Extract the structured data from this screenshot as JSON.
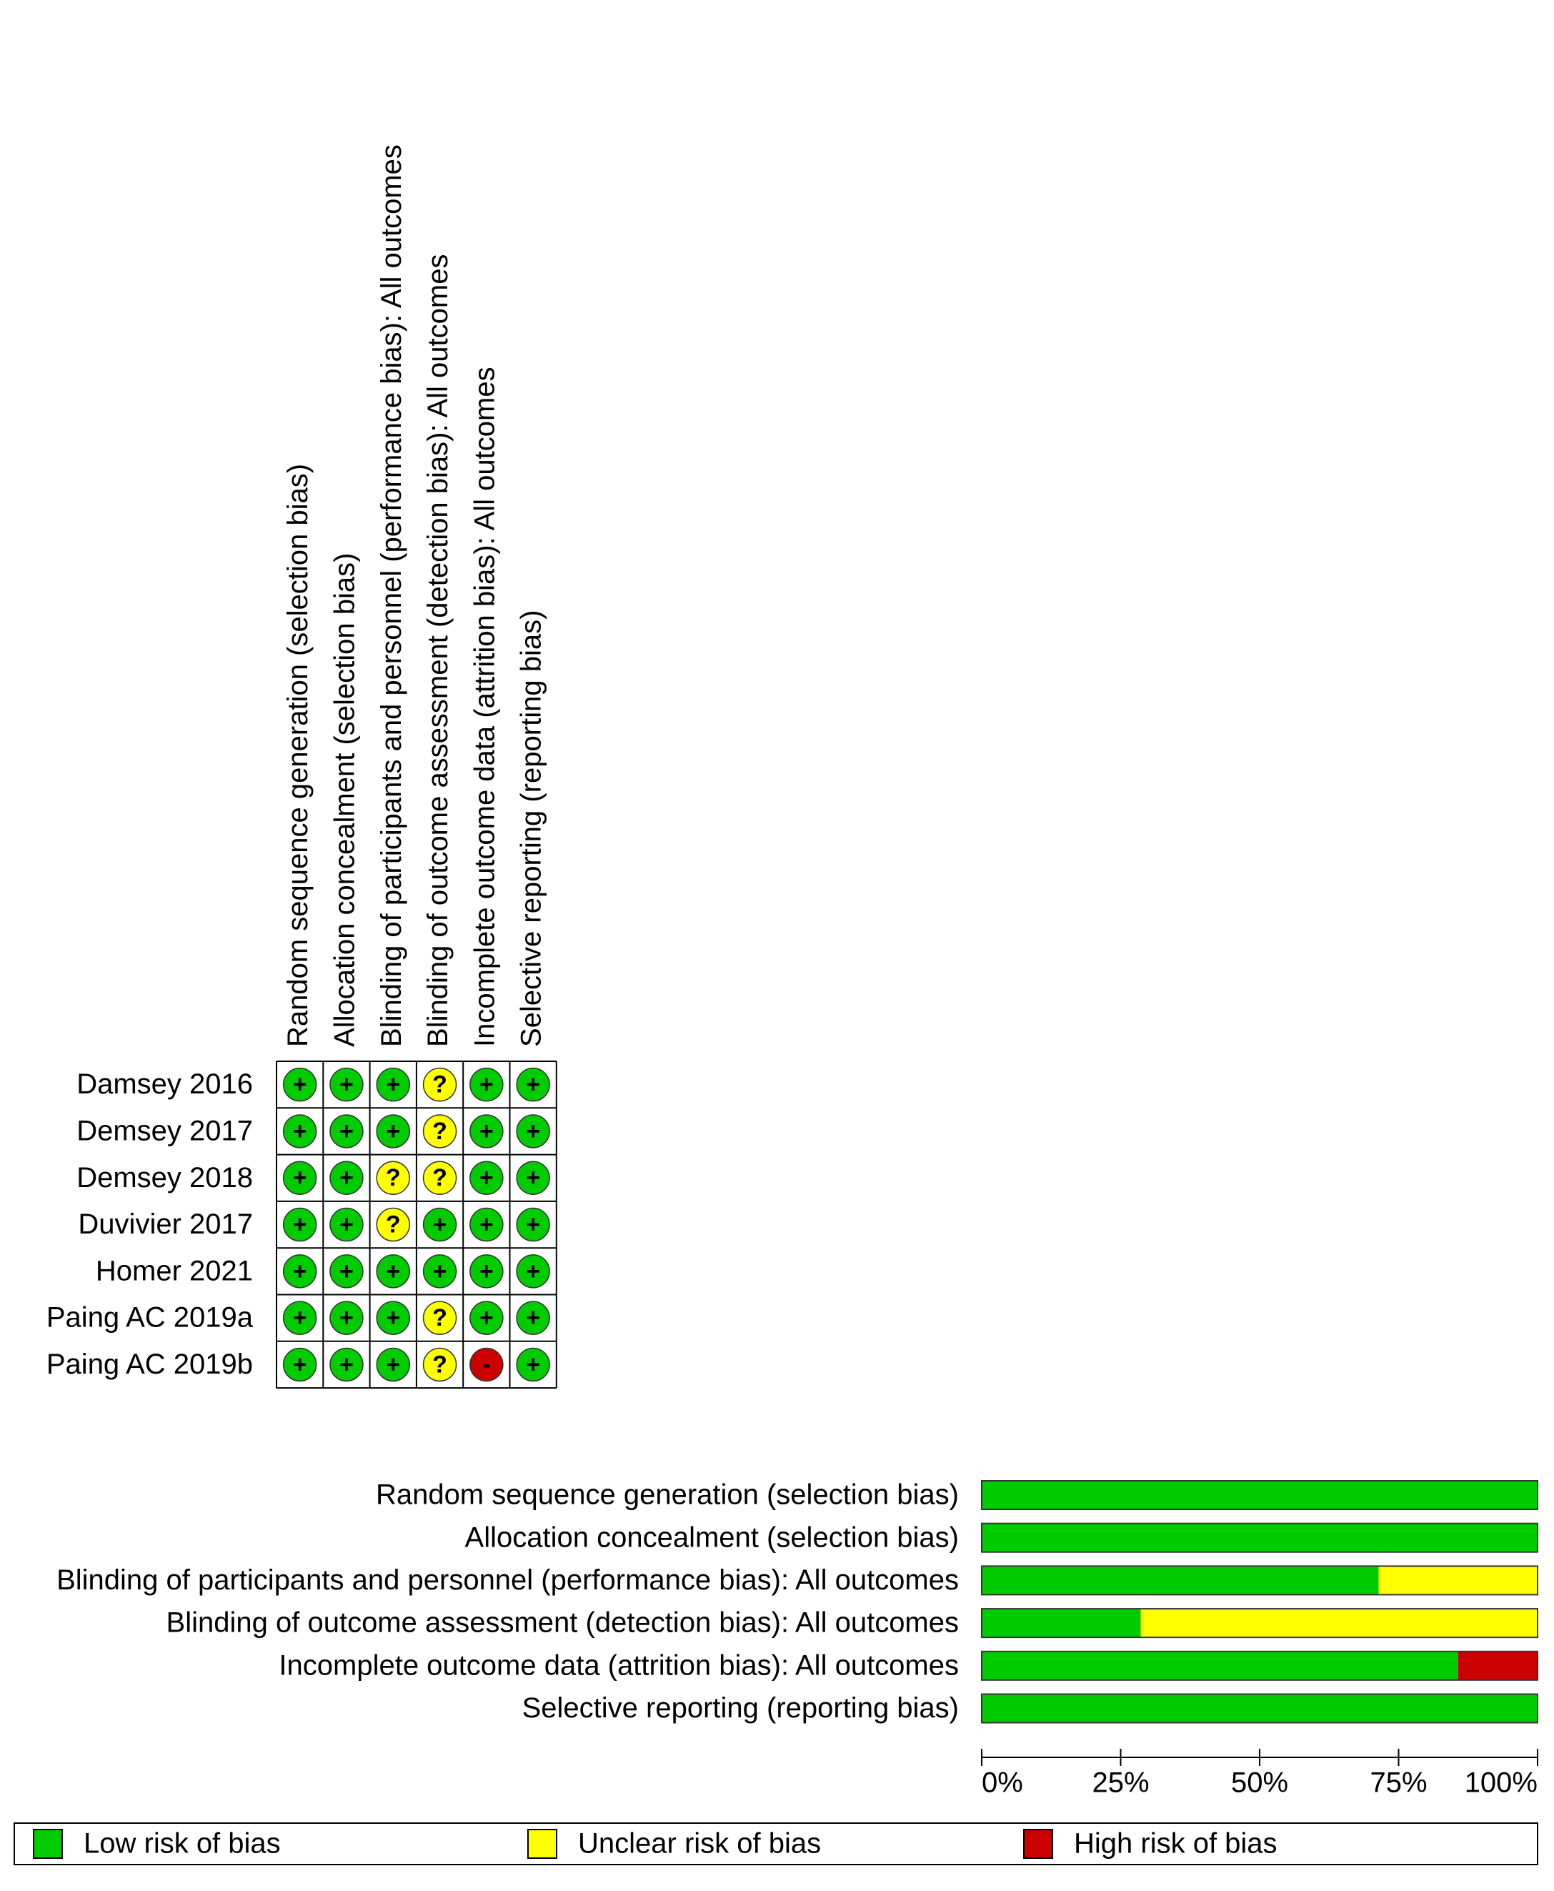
{
  "traffic_light": {
    "studies": [
      "Damsey 2016",
      "Demsey 2017",
      "Demsey 2018",
      "Duvivier 2017",
      "Homer 2021",
      "Paing AC 2019a",
      "Paing AC 2019b"
    ],
    "judgements": [
      [
        "+",
        "+",
        "+",
        "?",
        "+",
        "+"
      ],
      [
        "+",
        "+",
        "+",
        "?",
        "+",
        "+"
      ],
      [
        "+",
        "+",
        "?",
        "?",
        "+",
        "+"
      ],
      [
        "+",
        "+",
        "?",
        "+",
        "+",
        "+"
      ],
      [
        "+",
        "+",
        "+",
        "+",
        "+",
        "+"
      ],
      [
        "+",
        "+",
        "+",
        "?",
        "+",
        "+"
      ],
      [
        "+",
        "+",
        "+",
        "?",
        "-",
        "+"
      ]
    ]
  },
  "chart_data": {
    "type": "bar",
    "orientation": "horizontal",
    "stacked": true,
    "categories": [
      "Random sequence generation (selection bias)",
      "Allocation concealment (selection bias)",
      "Blinding of participants and personnel (performance bias): All outcomes",
      "Blinding of outcome assessment (detection bias): All outcomes",
      "Incomplete outcome data (attrition bias): All outcomes",
      "Selective reporting (reporting bias)"
    ],
    "series": [
      {
        "name": "Low risk of bias",
        "symbol": "+",
        "color": "#00cc00",
        "values": [
          100,
          100,
          71.4,
          28.6,
          85.7,
          100
        ]
      },
      {
        "name": "Unclear risk of bias",
        "symbol": "?",
        "color": "#ffff00",
        "values": [
          0,
          0,
          28.6,
          71.4,
          0,
          0
        ]
      },
      {
        "name": "High risk of bias",
        "symbol": "-",
        "color": "#cc0000",
        "values": [
          0,
          0,
          0,
          0,
          14.3,
          0
        ]
      }
    ],
    "xlim": [
      0,
      100
    ],
    "xticks": [
      {
        "value": 0,
        "label": "0%"
      },
      {
        "value": 25,
        "label": "25%"
      },
      {
        "value": 50,
        "label": "50%"
      },
      {
        "value": 75,
        "label": "75%"
      },
      {
        "value": 100,
        "label": "100%"
      }
    ]
  }
}
